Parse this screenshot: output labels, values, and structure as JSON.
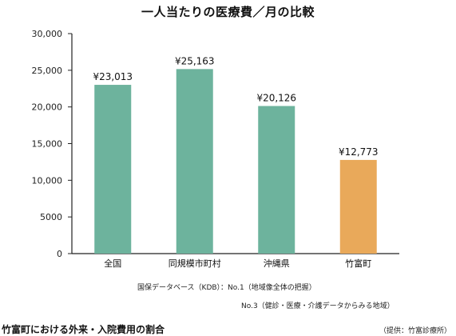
{
  "chart_data": {
    "type": "bar",
    "title": "一人当たりの医療費／月の比較",
    "categories": [
      "全国",
      "同規模市町村",
      "沖縄県",
      "竹富町"
    ],
    "values": [
      23013,
      25163,
      20126,
      12773
    ],
    "value_labels": [
      "¥23,013",
      "¥25,163",
      "¥20,126",
      "¥12,773"
    ],
    "colors": [
      "#6db39d",
      "#6db39d",
      "#6db39d",
      "#e9a95a"
    ],
    "ylim": [
      0,
      30000
    ],
    "yticks": [
      0,
      5000,
      10000,
      15000,
      20000,
      25000,
      30000
    ],
    "ytick_labels": [
      "0",
      "5000",
      "10,000",
      "15,000",
      "20,000",
      "25,000",
      "30,000"
    ],
    "grid": false,
    "legend": "none"
  },
  "source": {
    "line1": "国保データベース（KDB）：No.1（地域像全体の把握）",
    "line2": "No.3（健診・医療・介護データからみる地域）"
  },
  "caption": "竹富町における外来・入院費用の割合",
  "credit": "（提供：竹富診療所）"
}
